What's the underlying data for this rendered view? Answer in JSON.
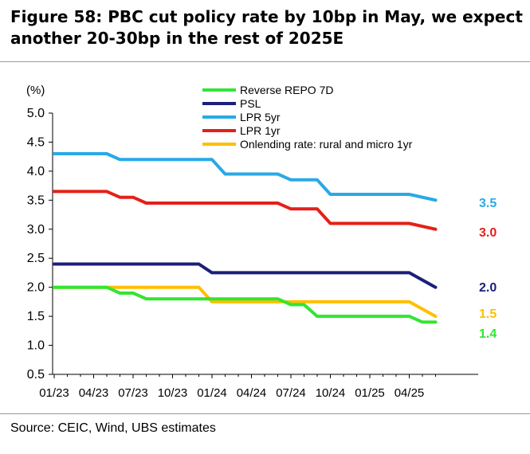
{
  "title_line1": "Figure 58: PBC cut policy rate by 10bp in May, we expect",
  "title_line2": "another 20-30bp in the rest of 2025E",
  "source": "Source: CEIC, Wind, UBS estimates",
  "chart_data": {
    "type": "line",
    "ylabel": "(%)",
    "ylim": [
      0.5,
      5.0
    ],
    "yticks": [
      "5.0",
      "4.5",
      "4.0",
      "3.5",
      "3.0",
      "2.5",
      "2.0",
      "1.5",
      "1.0",
      "0.5"
    ],
    "xticks": [
      "01/23",
      "04/23",
      "07/23",
      "10/23",
      "01/24",
      "04/24",
      "07/24",
      "10/24",
      "01/25",
      "04/25"
    ],
    "legend_position": "top-center",
    "grid": false,
    "series": [
      {
        "name": "Reverse REPO 7D",
        "color": "#33e533",
        "end_label": "1.4",
        "x": [
          "2023-01",
          "2023-05",
          "2023-06",
          "2023-07",
          "2023-08",
          "2024-06",
          "2024-07",
          "2024-08",
          "2024-09",
          "2024-10",
          "2025-04",
          "2025-05",
          "2025-06"
        ],
        "values": [
          2.0,
          2.0,
          1.9,
          1.9,
          1.8,
          1.8,
          1.7,
          1.7,
          1.5,
          1.5,
          1.5,
          1.4,
          1.4
        ]
      },
      {
        "name": "PSL",
        "color": "#1a1f7a",
        "end_label": "2.0",
        "x": [
          "2023-01",
          "2023-12",
          "2024-01",
          "2025-04",
          "2025-06"
        ],
        "values": [
          2.4,
          2.4,
          2.25,
          2.25,
          2.0
        ]
      },
      {
        "name": "LPR 5yr",
        "color": "#29a9e6",
        "end_label": "3.5",
        "x": [
          "2023-01",
          "2023-05",
          "2023-06",
          "2024-01",
          "2024-02",
          "2024-06",
          "2024-07",
          "2024-09",
          "2024-10",
          "2025-04",
          "2025-06"
        ],
        "values": [
          4.3,
          4.3,
          4.2,
          4.2,
          3.95,
          3.95,
          3.85,
          3.85,
          3.6,
          3.6,
          3.5
        ]
      },
      {
        "name": "LPR 1yr",
        "color": "#e32119",
        "end_label": "3.0",
        "x": [
          "2023-01",
          "2023-05",
          "2023-06",
          "2023-07",
          "2023-08",
          "2024-06",
          "2024-07",
          "2024-09",
          "2024-10",
          "2025-04",
          "2025-06"
        ],
        "values": [
          3.65,
          3.65,
          3.55,
          3.55,
          3.45,
          3.45,
          3.35,
          3.35,
          3.1,
          3.1,
          3.0
        ]
      },
      {
        "name": "Onlending rate: rural and micro 1yr",
        "color": "#ffbf00",
        "end_label": "1.5",
        "x": [
          "2023-01",
          "2023-12",
          "2024-01",
          "2024-06",
          "2024-07",
          "2025-04",
          "2025-06"
        ],
        "values": [
          2.0,
          2.0,
          1.75,
          1.75,
          1.75,
          1.75,
          1.5
        ]
      }
    ]
  }
}
